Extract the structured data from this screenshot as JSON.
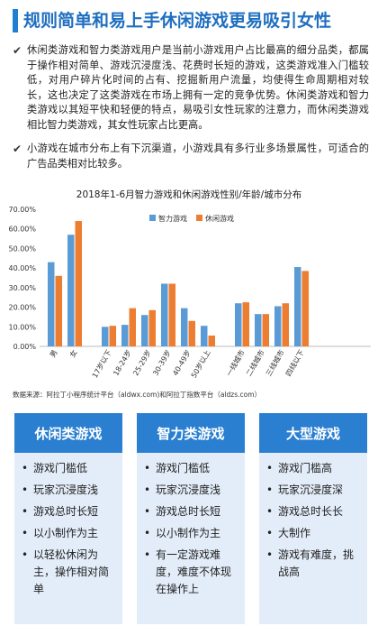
{
  "header": {
    "title": "规则简单和易上手休闲游戏更易吸引女性"
  },
  "bullets": [
    "休闲类游戏和智力类游戏用户是当前小游戏用户占比最高的细分品类，都属于操作相对简单、游戏沉浸度浅、花费时长短的游戏，这类游戏准入门槛较低，对用户碎片化时间的占有、挖掘新用户流量，均使得生命周期相对较长，这也决定了这类游戏在市场上拥有一定的竞争优势。休闲类游戏和智力类游戏以其短平快和轻便的特点，易吸引女性玩家的注意力，而休闲类游戏相比智力类游戏，其女性玩家占比更高。",
    "小游戏在城市分布上有下沉渠道，小游戏具有多行业多场景属性，可适合的广告品类相对比较多。"
  ],
  "chart_data": {
    "type": "bar",
    "title": "2018年1-6月智力游戏和休闲游戏性别/年龄/城市分布",
    "categories": [
      "男",
      "女",
      "17岁以下",
      "18-24岁",
      "25-29岁",
      "30-39岁",
      "40-49岁",
      "50岁以上",
      "一线城市",
      "二线城市",
      "三线城市",
      "四线以下"
    ],
    "series": [
      {
        "name": "智力游戏",
        "color": "#5b9bd5",
        "values": [
          43,
          57,
          10,
          11,
          16,
          32,
          19.5,
          10.5,
          22,
          16.5,
          20.5,
          40.5
        ]
      },
      {
        "name": "休闲游戏",
        "color": "#ed7d31",
        "values": [
          36,
          64,
          10.5,
          19.5,
          18.5,
          32,
          13,
          5.5,
          22.5,
          16.5,
          22,
          38.5
        ]
      }
    ],
    "yticks": [
      "70.00%",
      "60.00%",
      "50.00%",
      "40.00%",
      "30.00%",
      "20.00%",
      "10.00%",
      "0.00%"
    ],
    "ylim": [
      0,
      70
    ],
    "legend": "top"
  },
  "source": "数据来源：阿拉丁小程序统计平台（aldwx.com)和阿拉丁指数平台（aldzs.com）",
  "cards": [
    {
      "title": "休闲类游戏",
      "items": [
        "游戏门槛低",
        "玩家沉浸度浅",
        "游戏总时长短",
        "以小制作为主",
        "以轻松休闲为主，操作相对简单"
      ]
    },
    {
      "title": "智力类游戏",
      "items": [
        "游戏门槛低",
        "玩家沉浸度浅",
        "游戏总时长短",
        "以小制作为主",
        "有一定游戏难度，难度不体现在操作上"
      ]
    },
    {
      "title": "大型游戏",
      "items": [
        "游戏门槛高",
        "玩家沉浸度深",
        "游戏总时长长",
        "大制作",
        "游戏有难度，挑战高"
      ]
    }
  ]
}
